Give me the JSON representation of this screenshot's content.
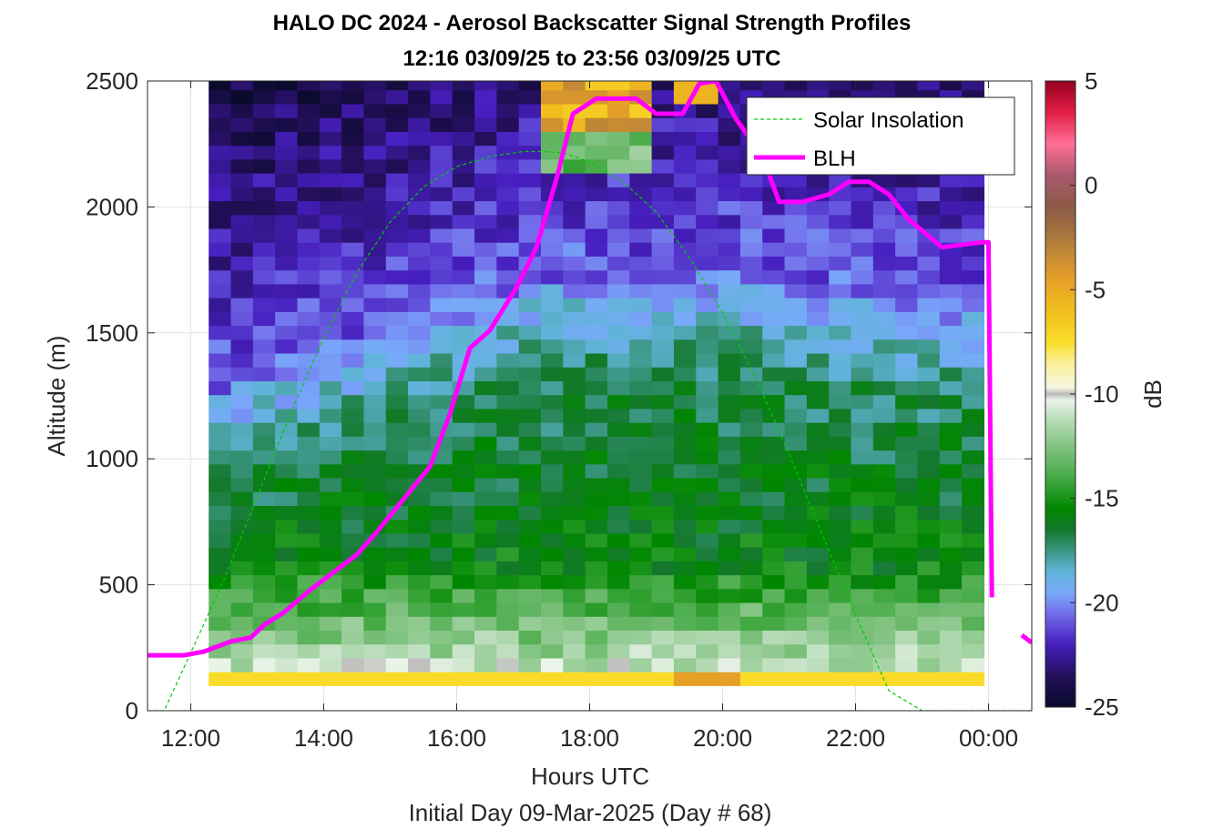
{
  "chart_data": {
    "type": "heatmap",
    "title": "HALO DC 2024 - Aerosol Backscatter Signal Strength Profiles",
    "subtitle": "12:16 03/09/25 to 23:56 03/09/25  UTC",
    "xlabel": "Hours UTC",
    "xlabel2": "Initial Day 09-Mar-2025 (Day # 68)",
    "ylabel": "Altitude (m)",
    "colorbar_label": "dB",
    "xlim": [
      11.35,
      24.65
    ],
    "ylim": [
      0,
      2500
    ],
    "clim": [
      -25,
      5
    ],
    "x_ticks": [
      {
        "value": 12,
        "label": "12:00"
      },
      {
        "value": 14,
        "label": "14:00"
      },
      {
        "value": 16,
        "label": "16:00"
      },
      {
        "value": 18,
        "label": "18:00"
      },
      {
        "value": 20,
        "label": "20:00"
      },
      {
        "value": 22,
        "label": "22:00"
      },
      {
        "value": 24,
        "label": "00:00"
      }
    ],
    "y_ticks": [
      {
        "value": 0,
        "label": "0"
      },
      {
        "value": 500,
        "label": "500"
      },
      {
        "value": 1000,
        "label": "1000"
      },
      {
        "value": 1500,
        "label": "1500"
      },
      {
        "value": 2000,
        "label": "2000"
      },
      {
        "value": 2500,
        "label": "2500"
      }
    ],
    "c_ticks": [
      {
        "value": 5,
        "label": "5"
      },
      {
        "value": 0,
        "label": "0"
      },
      {
        "value": -5,
        "label": "-5"
      },
      {
        "value": -10,
        "label": "-10"
      },
      {
        "value": -15,
        "label": "-15"
      },
      {
        "value": -20,
        "label": "-20"
      },
      {
        "value": -25,
        "label": "-25"
      }
    ],
    "grid": true,
    "legend_position": "top-right",
    "heatmap": {
      "x_start": 12.27,
      "x_end": 23.93,
      "columns": 35,
      "y_start": 100,
      "y_end": 2500,
      "y_bin": 55,
      "gap_columns": [
        [
          24.0,
          24.65
        ]
      ]
    },
    "series": [
      {
        "name": "Solar Insolation",
        "style": "dashed",
        "color": "#00cc00",
        "x": [
          11.35,
          11.6,
          12.0,
          12.5,
          13.0,
          13.5,
          14.0,
          14.5,
          15.0,
          15.5,
          16.0,
          16.5,
          17.0,
          17.3,
          17.6,
          18.0,
          18.5,
          19.0,
          19.5,
          20.0,
          20.5,
          21.0,
          21.5,
          22.0,
          22.5,
          23.0,
          23.3,
          24.0,
          24.65
        ],
        "y": [
          0,
          0,
          230,
          520,
          850,
          1180,
          1480,
          1740,
          1940,
          2080,
          2160,
          2200,
          2220,
          2220,
          2215,
          2180,
          2100,
          1980,
          1800,
          1580,
          1320,
          1020,
          700,
          380,
          80,
          0,
          0,
          0,
          0
        ]
      },
      {
        "name": "BLH",
        "style": "solid",
        "color": "#ff00ff",
        "x": [
          11.35,
          11.9,
          12.2,
          12.6,
          12.9,
          13.1,
          13.4,
          13.8,
          14.2,
          14.5,
          14.8,
          15.2,
          15.6,
          15.9,
          16.2,
          16.5,
          16.9,
          17.2,
          17.5,
          17.75,
          18.1,
          18.4,
          18.7,
          19.0,
          19.4,
          19.65,
          19.9,
          20.2,
          20.6,
          20.85,
          21.2,
          21.6,
          21.9,
          22.2,
          22.5,
          22.8,
          23.3,
          23.9,
          24.0,
          24.05
        ],
        "y": [
          220,
          220,
          235,
          275,
          290,
          340,
          390,
          480,
          560,
          620,
          710,
          840,
          970,
          1180,
          1440,
          1510,
          1680,
          1840,
          2110,
          2370,
          2430,
          2430,
          2430,
          2370,
          2370,
          2490,
          2500,
          2350,
          2200,
          2020,
          2020,
          2050,
          2100,
          2100,
          2050,
          1950,
          1840,
          1860,
          1860,
          450
        ],
        "segments": [
          {
            "x": [
              24.5,
              24.65
            ],
            "y": [
              300,
              270
            ]
          }
        ]
      }
    ]
  }
}
